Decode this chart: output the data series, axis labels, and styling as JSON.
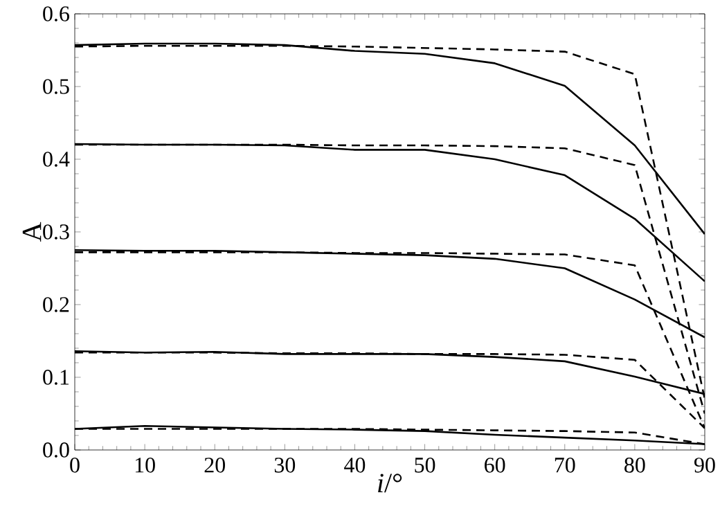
{
  "chart_data": {
    "type": "line",
    "xlabel": "*i*/°",
    "ylabel": "A",
    "x": [
      0,
      10,
      20,
      30,
      40,
      50,
      60,
      70,
      80,
      90
    ],
    "xlim": [
      0,
      90
    ],
    "xticks": [
      0,
      10,
      20,
      30,
      40,
      50,
      60,
      70,
      80,
      90
    ],
    "ylim": [
      0,
      0.6
    ],
    "yticks": [
      {
        "value": 0,
        "label": "0.0"
      },
      {
        "value": 0.1,
        "label": "0.1"
      },
      {
        "value": 0.2,
        "label": "0.2"
      },
      {
        "value": 0.3,
        "label": "0.3"
      },
      {
        "value": 0.4,
        "label": "0.4"
      },
      {
        "value": 0.5,
        "label": "0.5"
      },
      {
        "value": 0.6,
        "label": "0.6"
      }
    ],
    "marker": "none",
    "series": [
      {
        "color": "#000000",
        "line_style": "solid",
        "values": [
          0.557,
          0.559,
          0.559,
          0.557,
          0.549,
          0.545,
          0.532,
          0.501,
          0.419,
          0.297
        ]
      },
      {
        "color": "#000000",
        "line_style": "dashed",
        "values": [
          0.555,
          0.556,
          0.556,
          0.556,
          0.555,
          0.553,
          0.551,
          0.548,
          0.517,
          0.07
        ]
      },
      {
        "color": "#000000",
        "line_style": "solid",
        "values": [
          0.421,
          0.42,
          0.42,
          0.419,
          0.413,
          0.413,
          0.4,
          0.378,
          0.318,
          0.232
        ]
      },
      {
        "color": "#000000",
        "line_style": "dashed",
        "values": [
          0.42,
          0.42,
          0.42,
          0.42,
          0.419,
          0.419,
          0.418,
          0.415,
          0.392,
          0.05
        ]
      },
      {
        "color": "#000000",
        "line_style": "solid",
        "values": [
          0.275,
          0.274,
          0.274,
          0.272,
          0.27,
          0.268,
          0.263,
          0.25,
          0.207,
          0.155
        ]
      },
      {
        "color": "#000000",
        "line_style": "dashed",
        "values": [
          0.272,
          0.272,
          0.272,
          0.272,
          0.271,
          0.271,
          0.27,
          0.269,
          0.254,
          0.03
        ]
      },
      {
        "color": "#000000",
        "line_style": "solid",
        "values": [
          0.136,
          0.134,
          0.135,
          0.132,
          0.132,
          0.132,
          0.128,
          0.122,
          0.101,
          0.077
        ]
      },
      {
        "color": "#000000",
        "line_style": "dashed",
        "values": [
          0.134,
          0.134,
          0.134,
          0.133,
          0.133,
          0.132,
          0.132,
          0.131,
          0.124,
          0.03
        ]
      },
      {
        "color": "#000000",
        "line_style": "solid",
        "values": [
          0.029,
          0.033,
          0.031,
          0.029,
          0.028,
          0.026,
          0.021,
          0.017,
          0.013,
          0.008
        ]
      },
      {
        "color": "#000000",
        "line_style": "dashed",
        "values": [
          0.029,
          0.029,
          0.029,
          0.029,
          0.029,
          0.028,
          0.027,
          0.026,
          0.024,
          0.008
        ]
      }
    ]
  }
}
